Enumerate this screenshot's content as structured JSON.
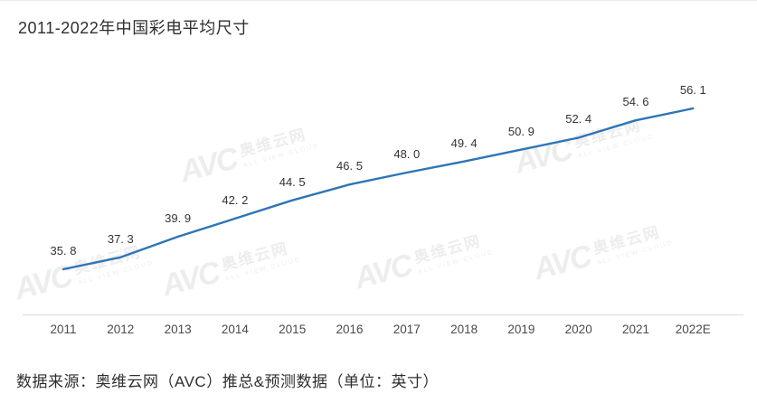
{
  "title": "2011-2022年中国彩电平均尺寸",
  "source": "数据来源：奥维云网（AVC）推总&预测数据（单位：英寸）",
  "watermark": {
    "logo": "AVC",
    "brand": "奥维云网",
    "tagline": "ALL VIEW CLOUD"
  },
  "chart_data": {
    "type": "line",
    "title": "2011-2022年中国彩电平均尺寸",
    "categories": [
      "2011",
      "2012",
      "2013",
      "2014",
      "2015",
      "2016",
      "2017",
      "2018",
      "2019",
      "2020",
      "2021",
      "2022E"
    ],
    "values": [
      35.8,
      37.3,
      39.9,
      42.2,
      44.5,
      46.5,
      48.0,
      49.4,
      50.9,
      52.4,
      54.6,
      56.1
    ],
    "unit": "英寸",
    "xlabel": "",
    "ylabel": "",
    "ylim": [
      35.8,
      56.1
    ],
    "line_color": "#2e75b6",
    "grid": false,
    "legend": "none",
    "data_labels": true
  }
}
